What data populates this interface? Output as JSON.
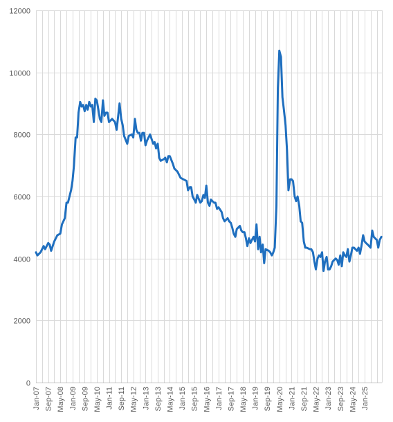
{
  "chart_data": {
    "type": "line",
    "title": "",
    "xlabel": "",
    "ylabel": "",
    "ylim": [
      0,
      12000
    ],
    "y_ticks": [
      0,
      2000,
      4000,
      6000,
      8000,
      10000,
      12000
    ],
    "x_tick_labels": [
      "Jan-07",
      "Sep-07",
      "May-08",
      "Jan-09",
      "Sep-09",
      "May-10",
      "Jan-11",
      "Sep-11",
      "May-12",
      "Jan-13",
      "Sep-13",
      "May-14",
      "Jan-15",
      "Sep-15",
      "May-16",
      "Jan-17",
      "Sep-17",
      "May-18",
      "Jan-19",
      "Sep-19",
      "May-20",
      "Jan-21",
      "Sep-21",
      "May-22",
      "Jan-23",
      "Sep-23",
      "May-24",
      "Jan-25"
    ],
    "x_range": [
      "Jan-07",
      "Jun-25"
    ],
    "grid": "on",
    "legend": "none",
    "line_color": "#1f6fbf",
    "series": [
      {
        "values": [
          [
            2007.0,
            4200
          ],
          [
            2007.08,
            4100
          ],
          [
            2007.25,
            4200
          ],
          [
            2007.42,
            4400
          ],
          [
            2007.5,
            4300
          ],
          [
            2007.67,
            4500
          ],
          [
            2007.75,
            4450
          ],
          [
            2007.83,
            4250
          ],
          [
            2008.0,
            4550
          ],
          [
            2008.17,
            4750
          ],
          [
            2008.33,
            4800
          ],
          [
            2008.42,
            5100
          ],
          [
            2008.58,
            5300
          ],
          [
            2008.67,
            5800
          ],
          [
            2008.75,
            5800
          ],
          [
            2008.92,
            6200
          ],
          [
            2009.0,
            6500
          ],
          [
            2009.08,
            7000
          ],
          [
            2009.17,
            7900
          ],
          [
            2009.25,
            7900
          ],
          [
            2009.33,
            8700
          ],
          [
            2009.42,
            9050
          ],
          [
            2009.5,
            8900
          ],
          [
            2009.58,
            8950
          ],
          [
            2009.67,
            8750
          ],
          [
            2009.75,
            8950
          ],
          [
            2009.83,
            8800
          ],
          [
            2009.92,
            9050
          ],
          [
            2010.0,
            8900
          ],
          [
            2010.08,
            8950
          ],
          [
            2010.17,
            8400
          ],
          [
            2010.25,
            9150
          ],
          [
            2010.33,
            9100
          ],
          [
            2010.42,
            8800
          ],
          [
            2010.5,
            8500
          ],
          [
            2010.58,
            8400
          ],
          [
            2010.67,
            9100
          ],
          [
            2010.75,
            8600
          ],
          [
            2010.83,
            8700
          ],
          [
            2010.92,
            8700
          ],
          [
            2011.0,
            8400
          ],
          [
            2011.17,
            8500
          ],
          [
            2011.33,
            8400
          ],
          [
            2011.42,
            8150
          ],
          [
            2011.58,
            9000
          ],
          [
            2011.67,
            8500
          ],
          [
            2011.75,
            8300
          ],
          [
            2011.83,
            7950
          ],
          [
            2012.0,
            7700
          ],
          [
            2012.08,
            7950
          ],
          [
            2012.25,
            8000
          ],
          [
            2012.33,
            7900
          ],
          [
            2012.42,
            8500
          ],
          [
            2012.5,
            8150
          ],
          [
            2012.58,
            8050
          ],
          [
            2012.67,
            8050
          ],
          [
            2012.75,
            7800
          ],
          [
            2012.83,
            8050
          ],
          [
            2012.92,
            8050
          ],
          [
            2013.0,
            7650
          ],
          [
            2013.08,
            7800
          ],
          [
            2013.25,
            8000
          ],
          [
            2013.42,
            7700
          ],
          [
            2013.5,
            7750
          ],
          [
            2013.58,
            7550
          ],
          [
            2013.67,
            7700
          ],
          [
            2013.75,
            7250
          ],
          [
            2013.83,
            7150
          ],
          [
            2014.0,
            7200
          ],
          [
            2014.08,
            7250
          ],
          [
            2014.17,
            7100
          ],
          [
            2014.25,
            7300
          ],
          [
            2014.33,
            7300
          ],
          [
            2014.5,
            7050
          ],
          [
            2014.58,
            6900
          ],
          [
            2014.75,
            6800
          ],
          [
            2014.92,
            6600
          ],
          [
            2015.08,
            6550
          ],
          [
            2015.25,
            6500
          ],
          [
            2015.33,
            6200
          ],
          [
            2015.42,
            6300
          ],
          [
            2015.5,
            6300
          ],
          [
            2015.58,
            6000
          ],
          [
            2015.67,
            5900
          ],
          [
            2015.75,
            5800
          ],
          [
            2015.83,
            6050
          ],
          [
            2016.0,
            5800
          ],
          [
            2016.08,
            5850
          ],
          [
            2016.17,
            6050
          ],
          [
            2016.25,
            5950
          ],
          [
            2016.33,
            6350
          ],
          [
            2016.42,
            5800
          ],
          [
            2016.5,
            5700
          ],
          [
            2016.58,
            5900
          ],
          [
            2016.75,
            5800
          ],
          [
            2016.83,
            5800
          ],
          [
            2016.92,
            5600
          ],
          [
            2017.0,
            5650
          ],
          [
            2017.17,
            5500
          ],
          [
            2017.25,
            5300
          ],
          [
            2017.33,
            5200
          ],
          [
            2017.42,
            5250
          ],
          [
            2017.5,
            5300
          ],
          [
            2017.58,
            5200
          ],
          [
            2017.67,
            5150
          ],
          [
            2017.75,
            5000
          ],
          [
            2017.83,
            4800
          ],
          [
            2017.92,
            4700
          ],
          [
            2018.0,
            4950
          ],
          [
            2018.17,
            5050
          ],
          [
            2018.25,
            4900
          ],
          [
            2018.33,
            4850
          ],
          [
            2018.42,
            4850
          ],
          [
            2018.5,
            4650
          ],
          [
            2018.58,
            4400
          ],
          [
            2018.67,
            4650
          ],
          [
            2018.75,
            4500
          ],
          [
            2018.83,
            4600
          ],
          [
            2018.92,
            4700
          ],
          [
            2019.0,
            4550
          ],
          [
            2019.08,
            5100
          ],
          [
            2019.17,
            4300
          ],
          [
            2019.25,
            4700
          ],
          [
            2019.33,
            4200
          ],
          [
            2019.42,
            4450
          ],
          [
            2019.5,
            3850
          ],
          [
            2019.58,
            4300
          ],
          [
            2019.75,
            4250
          ],
          [
            2019.83,
            4200
          ],
          [
            2019.92,
            4100
          ],
          [
            2020.0,
            4200
          ],
          [
            2020.08,
            4350
          ],
          [
            2020.17,
            5700
          ],
          [
            2020.25,
            9500
          ],
          [
            2020.33,
            10700
          ],
          [
            2020.42,
            10500
          ],
          [
            2020.5,
            9200
          ],
          [
            2020.58,
            8800
          ],
          [
            2020.67,
            8300
          ],
          [
            2020.75,
            7500
          ],
          [
            2020.83,
            6200
          ],
          [
            2020.92,
            6550
          ],
          [
            2021.0,
            6550
          ],
          [
            2021.08,
            6500
          ],
          [
            2021.17,
            6000
          ],
          [
            2021.25,
            5850
          ],
          [
            2021.33,
            6000
          ],
          [
            2021.42,
            5700
          ],
          [
            2021.5,
            5200
          ],
          [
            2021.58,
            5150
          ],
          [
            2021.67,
            4550
          ],
          [
            2021.75,
            4350
          ],
          [
            2021.83,
            4350
          ],
          [
            2022.0,
            4300
          ],
          [
            2022.08,
            4300
          ],
          [
            2022.17,
            4200
          ],
          [
            2022.25,
            3900
          ],
          [
            2022.33,
            3650
          ],
          [
            2022.42,
            4000
          ],
          [
            2022.5,
            4100
          ],
          [
            2022.58,
            4050
          ],
          [
            2022.67,
            4200
          ],
          [
            2022.75,
            3600
          ],
          [
            2022.83,
            3900
          ],
          [
            2022.92,
            4050
          ],
          [
            2023.0,
            3650
          ],
          [
            2023.08,
            3650
          ],
          [
            2023.17,
            3750
          ],
          [
            2023.25,
            3900
          ],
          [
            2023.42,
            4000
          ],
          [
            2023.5,
            3950
          ],
          [
            2023.58,
            3800
          ],
          [
            2023.67,
            4100
          ],
          [
            2023.75,
            3750
          ],
          [
            2023.83,
            4200
          ],
          [
            2023.92,
            4100
          ],
          [
            2024.0,
            4050
          ],
          [
            2024.08,
            4300
          ],
          [
            2024.17,
            3900
          ],
          [
            2024.25,
            4100
          ],
          [
            2024.33,
            4350
          ],
          [
            2024.42,
            4350
          ],
          [
            2024.5,
            4300
          ],
          [
            2024.58,
            4250
          ],
          [
            2024.67,
            4350
          ],
          [
            2024.75,
            4150
          ],
          [
            2024.83,
            4400
          ],
          [
            2024.92,
            4750
          ],
          [
            2025.0,
            4550
          ],
          [
            2025.08,
            4500
          ],
          [
            2025.17,
            4450
          ],
          [
            2025.25,
            4400
          ],
          [
            2025.33,
            4350
          ],
          [
            2025.42,
            4900
          ],
          [
            2025.5,
            4700
          ],
          [
            2025.58,
            4650
          ],
          [
            2025.67,
            4600
          ],
          [
            2025.75,
            4350
          ],
          [
            2025.83,
            4600
          ],
          [
            2025.92,
            4700
          ]
        ]
      }
    ]
  }
}
